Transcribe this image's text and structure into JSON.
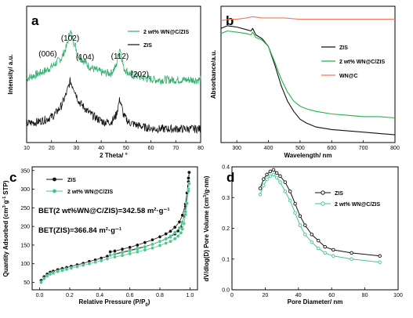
{
  "colors": {
    "black": "#111111",
    "green": "#2fae6a",
    "green_b": "#22b34a",
    "orange": "#f07a55",
    "green_cd": "#41c98a"
  },
  "chart_data": [
    {
      "panel": "a",
      "type": "line",
      "title": "",
      "xlabel": "2 Theta/ °",
      "ylabel": "Intensity/ a.u.",
      "xlim": [
        10,
        80
      ],
      "xticks": [
        "10",
        "20",
        "30",
        "40",
        "50",
        "60",
        "70",
        "80"
      ],
      "grid": false,
      "legend_position": "top-right",
      "annotations": [
        {
          "text": "(006)",
          "x": 18.5
        },
        {
          "text": "(102)",
          "x": 27.5
        },
        {
          "text": "(104)",
          "x": 33.5
        },
        {
          "text": "(112)",
          "x": 47.5
        },
        {
          "text": "(202)",
          "x": 55.5
        }
      ],
      "series": [
        {
          "name": "2 wt% WN@C/ZIS",
          "color": "#2fae6a",
          "x": [
            10,
            14,
            18,
            21,
            24,
            26,
            27.5,
            29,
            31,
            33,
            35,
            38,
            41,
            44,
            46,
            47.5,
            49,
            51,
            54,
            58,
            62,
            66,
            70,
            75,
            80
          ],
          "y": [
            0.47,
            0.5,
            0.53,
            0.57,
            0.62,
            0.7,
            0.82,
            0.74,
            0.63,
            0.6,
            0.56,
            0.53,
            0.51,
            0.51,
            0.56,
            0.7,
            0.55,
            0.51,
            0.49,
            0.47,
            0.46,
            0.46,
            0.46,
            0.46,
            0.46
          ]
        },
        {
          "name": "ZIS",
          "color": "#111111",
          "x": [
            10,
            14,
            18,
            21,
            24,
            26,
            27.5,
            29,
            31,
            33,
            35,
            38,
            41,
            44,
            46,
            47.5,
            49,
            51,
            54,
            58,
            62,
            66,
            70,
            75,
            80
          ],
          "y": [
            0.14,
            0.15,
            0.17,
            0.2,
            0.27,
            0.36,
            0.45,
            0.4,
            0.3,
            0.26,
            0.22,
            0.18,
            0.15,
            0.15,
            0.2,
            0.32,
            0.2,
            0.15,
            0.13,
            0.11,
            0.1,
            0.1,
            0.1,
            0.1,
            0.1
          ]
        }
      ]
    },
    {
      "panel": "b",
      "type": "line",
      "title": "",
      "xlabel": "Wavelength/ nm",
      "ylabel": "Absorbance/a.u.",
      "xlim": [
        250,
        800
      ],
      "xticks": [
        "300",
        "400",
        "500",
        "600",
        "700",
        "800"
      ],
      "grid": false,
      "legend_position": "right",
      "series": [
        {
          "name": "ZIS",
          "color": "#111111",
          "x": [
            250,
            270,
            300,
            330,
            345,
            350,
            360,
            380,
            400,
            420,
            440,
            460,
            480,
            500,
            520,
            550,
            600,
            650,
            700,
            750,
            800
          ],
          "y": [
            0.88,
            0.9,
            0.89,
            0.87,
            0.86,
            0.88,
            0.83,
            0.8,
            0.74,
            0.6,
            0.44,
            0.32,
            0.24,
            0.18,
            0.15,
            0.12,
            0.1,
            0.09,
            0.08,
            0.07,
            0.06
          ]
        },
        {
          "name": "2 wt% WN@C/ZIS",
          "color": "#22b34a",
          "x": [
            250,
            270,
            300,
            330,
            345,
            350,
            360,
            380,
            400,
            420,
            440,
            460,
            480,
            500,
            520,
            550,
            600,
            650,
            700,
            750,
            800
          ],
          "y": [
            0.84,
            0.86,
            0.85,
            0.84,
            0.83,
            0.85,
            0.81,
            0.79,
            0.74,
            0.62,
            0.49,
            0.39,
            0.32,
            0.28,
            0.26,
            0.24,
            0.22,
            0.21,
            0.2,
            0.2,
            0.19
          ]
        },
        {
          "name": "WN@C",
          "color": "#f07a55",
          "x": [
            250,
            280,
            300,
            330,
            350,
            380,
            400,
            450,
            500,
            550,
            600,
            650,
            700,
            750,
            800
          ],
          "y": [
            0.94,
            0.95,
            0.95,
            0.96,
            0.97,
            0.96,
            0.96,
            0.96,
            0.95,
            0.95,
            0.95,
            0.95,
            0.95,
            0.95,
            0.95
          ]
        }
      ]
    },
    {
      "panel": "c",
      "type": "scatter",
      "title": "",
      "xlabel": "Relative Pressure (P/P",
      "xlabel_sub": "0",
      "xlabel_end": ")",
      "ylabel": "Quantity Adsorbed (cm",
      "ylabel_rest": "g",
      "ylabel_end": "STP)",
      "xlim": [
        -0.05,
        1.05
      ],
      "ylim": [
        30,
        360
      ],
      "xticks": [
        "0.0",
        "0.2",
        "0.4",
        "0.6",
        "0.8",
        "1.0"
      ],
      "yticks": [
        "50",
        "100",
        "150",
        "200",
        "250",
        "300",
        "350"
      ],
      "grid": false,
      "legend_position": "top-left",
      "annotations": [
        {
          "text": "BET(2 wt%WN@C/ZIS)=342.58 m²·g⁻¹"
        },
        {
          "text": "BET(ZIS)=366.84 m²·g⁻¹"
        }
      ],
      "series": [
        {
          "name": "ZIS",
          "color": "#111111",
          "x": [
            0.01,
            0.03,
            0.05,
            0.07,
            0.09,
            0.12,
            0.15,
            0.18,
            0.21,
            0.25,
            0.29,
            0.33,
            0.37,
            0.41,
            0.45,
            0.5,
            0.55,
            0.6,
            0.65,
            0.7,
            0.75,
            0.8,
            0.84,
            0.87,
            0.9,
            0.92,
            0.94,
            0.95,
            0.96,
            0.97,
            0.98,
            0.99,
            0.995,
            0.99,
            0.97,
            0.95,
            0.93,
            0.9,
            0.87,
            0.84,
            0.8,
            0.75,
            0.7,
            0.65,
            0.6,
            0.55,
            0.5,
            0.47
          ],
          "y": [
            55,
            65,
            72,
            77,
            80,
            84,
            87,
            90,
            93,
            97,
            101,
            106,
            110,
            115,
            120,
            126,
            131,
            136,
            141,
            146,
            152,
            160,
            166,
            172,
            180,
            188,
            198,
            210,
            228,
            255,
            290,
            330,
            345,
            320,
            260,
            230,
            212,
            198,
            187,
            180,
            172,
            164,
            157,
            150,
            144,
            139,
            134,
            132
          ]
        },
        {
          "name": "2 wt% WN@C/ZIS",
          "color": "#41c98a",
          "x": [
            0.01,
            0.03,
            0.05,
            0.07,
            0.09,
            0.12,
            0.15,
            0.18,
            0.21,
            0.25,
            0.29,
            0.33,
            0.37,
            0.41,
            0.45,
            0.5,
            0.55,
            0.6,
            0.65,
            0.7,
            0.75,
            0.8,
            0.84,
            0.87,
            0.9,
            0.92,
            0.94,
            0.95,
            0.96,
            0.97,
            0.98,
            0.99,
            0.995,
            0.99,
            0.97,
            0.95,
            0.93,
            0.9,
            0.87,
            0.84,
            0.8,
            0.75,
            0.7,
            0.65,
            0.6,
            0.55,
            0.5,
            0.47
          ],
          "y": [
            50,
            60,
            67,
            72,
            75,
            79,
            82,
            85,
            88,
            92,
            96,
            100,
            104,
            108,
            113,
            118,
            122,
            127,
            132,
            137,
            142,
            149,
            155,
            160,
            167,
            174,
            183,
            193,
            208,
            232,
            262,
            300,
            315,
            295,
            240,
            212,
            196,
            184,
            174,
            167,
            160,
            152,
            145,
            139,
            134,
            129,
            125,
            123
          ]
        }
      ]
    },
    {
      "panel": "d",
      "type": "line",
      "title": "",
      "xlabel": "Pore Diameter/ nm",
      "ylabel": "dV/dlog(D) Pore Volume (cm",
      "ylabel_end": "/g·nm)",
      "xlim": [
        0,
        100
      ],
      "ylim": [
        0.0,
        0.4
      ],
      "xticks": [
        "0",
        "20",
        "40",
        "60",
        "80",
        "100"
      ],
      "yticks": [
        "0.0",
        "0.1",
        "0.2",
        "0.3",
        "0.4"
      ],
      "grid": false,
      "legend_position": "top-right",
      "series": [
        {
          "name": "ZIS",
          "color": "#111111",
          "x": [
            17,
            19,
            21,
            23,
            25,
            27,
            29,
            32,
            35,
            38,
            41,
            44,
            48,
            52,
            56,
            61,
            72,
            89
          ],
          "y": [
            0.33,
            0.36,
            0.375,
            0.385,
            0.39,
            0.38,
            0.37,
            0.35,
            0.32,
            0.28,
            0.24,
            0.21,
            0.18,
            0.16,
            0.14,
            0.13,
            0.12,
            0.11
          ]
        },
        {
          "name": "2 wt% WN@C/ZIS",
          "color": "#41c98a",
          "x": [
            17,
            19,
            21,
            23,
            25,
            27,
            29,
            32,
            35,
            38,
            41,
            44,
            48,
            52,
            56,
            61,
            72,
            89
          ],
          "y": [
            0.31,
            0.34,
            0.36,
            0.37,
            0.375,
            0.365,
            0.35,
            0.32,
            0.29,
            0.25,
            0.21,
            0.18,
            0.155,
            0.135,
            0.12,
            0.11,
            0.1,
            0.09
          ]
        }
      ]
    }
  ]
}
